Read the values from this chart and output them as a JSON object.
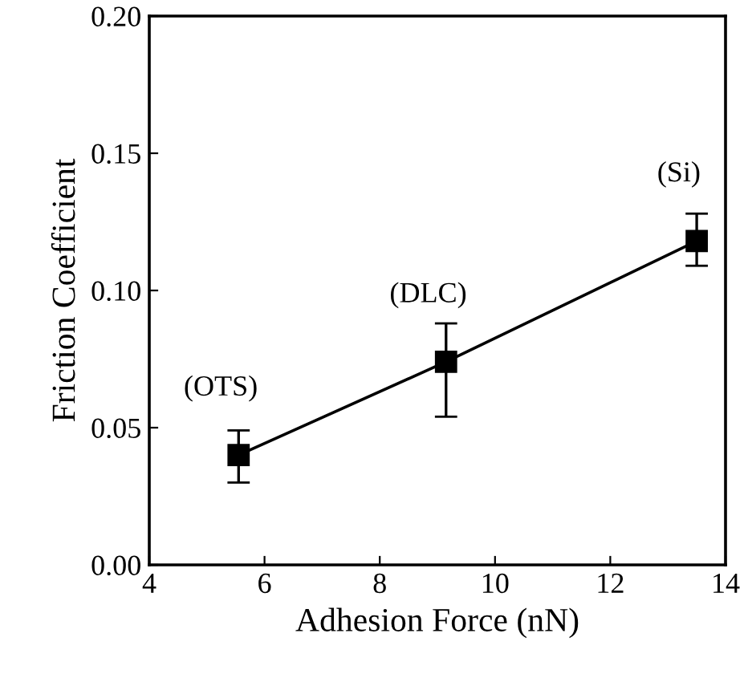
{
  "chart_data": {
    "type": "line",
    "xlabel": "Adhesion Force (nN)",
    "ylabel": "Friction Coefficient",
    "x": [
      5.55,
      9.15,
      13.5
    ],
    "series": [
      {
        "color": "#000000",
        "values": [
          0.04,
          0.074,
          0.118
        ],
        "errors": [
          [
            0.03,
            0.049
          ],
          [
            0.054,
            0.088
          ],
          [
            0.109,
            0.128
          ]
        ]
      }
    ],
    "marker": "square",
    "line_style": "solid",
    "xlim": [
      4,
      14
    ],
    "xticks": [
      4,
      6,
      8,
      10,
      12,
      14
    ],
    "ylim": [
      0,
      0.2
    ],
    "yticks": [
      {
        "value": 0,
        "label": "0.00"
      },
      {
        "value": 0.05,
        "label": "0.05"
      },
      {
        "value": 0.1,
        "label": "0.10"
      },
      {
        "value": 0.15,
        "label": "0.15"
      },
      {
        "value": 0.2,
        "label": "0.20"
      }
    ],
    "annotations": [
      {
        "text": "(OTS)",
        "x": 5.55,
        "y": 0.04
      },
      {
        "text": "(DLC)",
        "x": 9.15,
        "y": 0.074
      },
      {
        "text": "(Si)",
        "x": 13.5,
        "y": 0.118
      }
    ],
    "grid": false,
    "legend": false
  }
}
